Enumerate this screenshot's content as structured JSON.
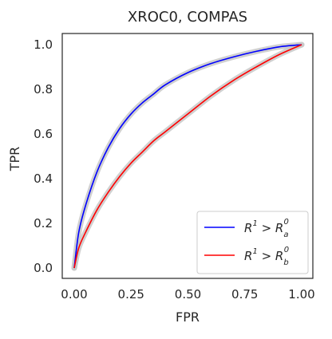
{
  "chart_data": {
    "type": "line",
    "title": "XROC0, COMPAS",
    "xlabel": "FPR",
    "ylabel": "TPR",
    "xlim": [
      0.0,
      1.0
    ],
    "ylim": [
      0.0,
      1.0
    ],
    "grid": false,
    "legend_position": "bottom-right",
    "x_ticks": [
      "0.00",
      "0.25",
      "0.50",
      "0.75",
      "1.00"
    ],
    "y_ticks": [
      "0.0",
      "0.2",
      "0.4",
      "0.6",
      "0.8",
      "1.0"
    ],
    "series": [
      {
        "name": "R¹ > Rₐ⁰",
        "legend_base": "R",
        "legend_sup1": "1",
        "legend_op": " > ",
        "legend_base2": "R",
        "legend_sub": "a",
        "legend_sup2": "0",
        "color": "#0000ff",
        "x": [
          0.0,
          0.02,
          0.05,
          0.1,
          0.15,
          0.2,
          0.25,
          0.3,
          0.35,
          0.4,
          0.5,
          0.6,
          0.7,
          0.8,
          0.9,
          1.0
        ],
        "y": [
          0.0,
          0.16,
          0.28,
          0.43,
          0.54,
          0.625,
          0.69,
          0.74,
          0.78,
          0.82,
          0.875,
          0.915,
          0.945,
          0.97,
          0.99,
          1.0
        ]
      },
      {
        "name": "R¹ > R_b⁰",
        "legend_base": "R",
        "legend_sup1": "1",
        "legend_op": " > ",
        "legend_base2": "R",
        "legend_sub": "b",
        "legend_sup2": "0",
        "color": "#ff0000",
        "x": [
          0.0,
          0.02,
          0.05,
          0.1,
          0.15,
          0.2,
          0.25,
          0.3,
          0.35,
          0.4,
          0.5,
          0.6,
          0.7,
          0.8,
          0.9,
          1.0
        ],
        "y": [
          0.0,
          0.09,
          0.16,
          0.26,
          0.34,
          0.41,
          0.47,
          0.52,
          0.57,
          0.61,
          0.69,
          0.77,
          0.84,
          0.9,
          0.955,
          1.0
        ]
      }
    ],
    "band_color": "#c8c8c8"
  }
}
